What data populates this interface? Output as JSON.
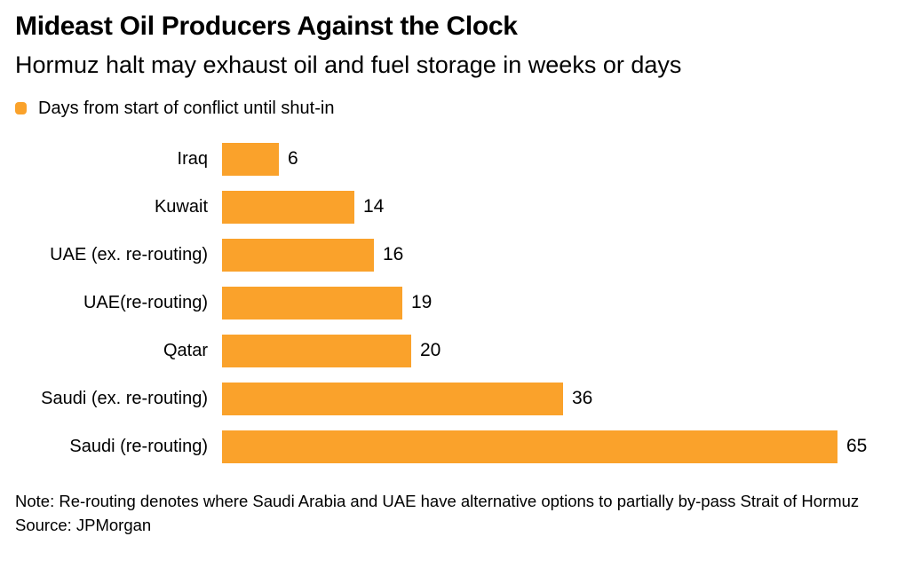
{
  "chart_data": {
    "type": "bar",
    "orientation": "horizontal",
    "title": "Mideast Oil Producers Against the Clock",
    "subtitle": "Hormuz halt may exhaust oil and fuel storage in weeks or days",
    "legend_label": "Days from start of conflict until shut-in",
    "legend_position": "top-left",
    "categories": [
      "Iraq",
      "Kuwait",
      "UAE (ex. re-routing)",
      "UAE(re-routing)",
      "Qatar",
      "Saudi (ex. re-routing)",
      "Saudi (re-routing)"
    ],
    "values": [
      6,
      14,
      16,
      19,
      20,
      36,
      65
    ],
    "xlim": [
      0,
      65
    ],
    "grid": false,
    "value_labels": true,
    "bar_color": "#FAA22B",
    "note": "Note: Re-routing denotes where Saudi Arabia and UAE have alternative options to partially by-pass Strait of Hormuz",
    "source": "Source: JPMorgan"
  }
}
